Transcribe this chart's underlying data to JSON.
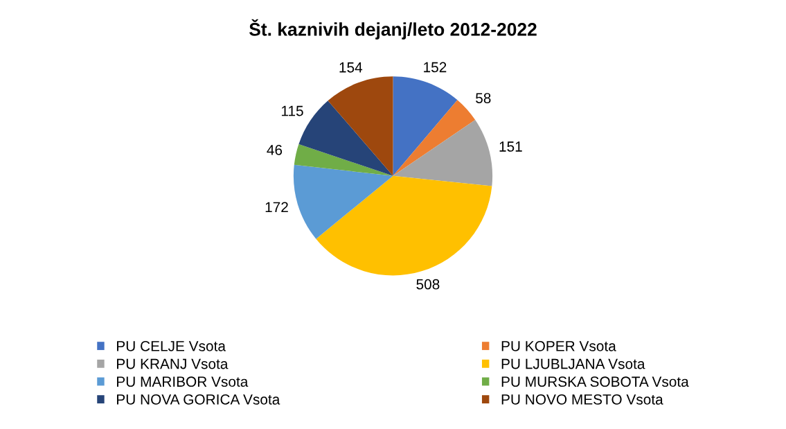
{
  "chart_data": {
    "type": "pie",
    "title": "Št. kaznivih dejanj/leto 2012-2022",
    "categories": [
      "PU CELJE Vsota",
      "PU KOPER Vsota",
      "PU KRANJ Vsota",
      "PU LJUBLJANA Vsota",
      "PU MARIBOR Vsota",
      "PU MURSKA SOBOTA Vsota",
      "PU NOVA GORICA Vsota",
      "PU NOVO MESTO Vsota"
    ],
    "values": [
      152,
      58,
      151,
      508,
      172,
      46,
      115,
      154
    ],
    "colors": [
      "#4472c4",
      "#ed7d31",
      "#a5a5a5",
      "#ffc000",
      "#5b9bd5",
      "#70ad47",
      "#264478",
      "#9e480e"
    ],
    "data_labels": true,
    "legend": "bottom"
  }
}
